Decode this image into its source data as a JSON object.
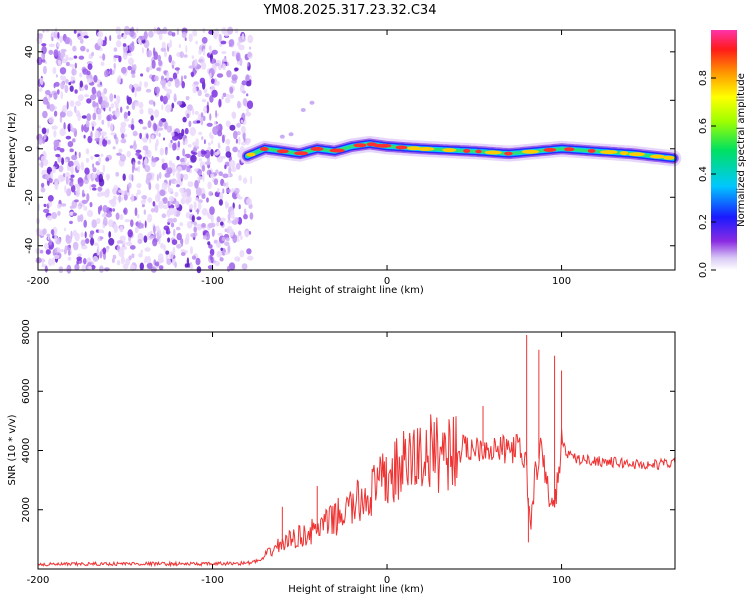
{
  "title": "YM08.2025.317.23.32.C34",
  "chart_data": [
    {
      "type": "heatmap",
      "title": "YM08.2025.317.23.32.C34",
      "xlabel": "Height of straight line (km)",
      "ylabel": "Frequency (Hz)",
      "xlim": [
        -200,
        165
      ],
      "ylim": [
        -50,
        49
      ],
      "xticks": [
        -200,
        -100,
        0,
        100
      ],
      "yticks": [
        -40,
        -20,
        0,
        20,
        40
      ],
      "noise_region_x": [
        -200,
        -80
      ],
      "signal_track": [
        {
          "x": -80,
          "y": -3
        },
        {
          "x": -70,
          "y": 0
        },
        {
          "x": -60,
          "y": -1
        },
        {
          "x": -50,
          "y": -2
        },
        {
          "x": -40,
          "y": 0
        },
        {
          "x": -30,
          "y": -1
        },
        {
          "x": -20,
          "y": 1
        },
        {
          "x": -10,
          "y": 2
        },
        {
          "x": 0,
          "y": 1
        },
        {
          "x": 20,
          "y": 0
        },
        {
          "x": 50,
          "y": -1
        },
        {
          "x": 70,
          "y": -2
        },
        {
          "x": 100,
          "y": 0
        },
        {
          "x": 140,
          "y": -2
        },
        {
          "x": 165,
          "y": -4
        }
      ],
      "colorbar": {
        "label": "Normalized spectral amplitude",
        "range": [
          0,
          1
        ],
        "ticks": [
          "0.0",
          "0.2",
          "0.4",
          "0.6",
          "0.8"
        ]
      }
    },
    {
      "type": "line",
      "xlabel": "Height of straight line (km)",
      "ylabel": "SNR (10 * v/v)",
      "xlim": [
        -200,
        165
      ],
      "ylim": [
        0,
        8000
      ],
      "xticks": [
        -200,
        -100,
        0,
        100
      ],
      "yticks": [
        2000,
        4000,
        6000,
        8000
      ],
      "color": "#ee3333",
      "series": [
        {
          "name": "SNR",
          "x": [
            -200,
            -150,
            -100,
            -80,
            -72,
            -65,
            -55,
            -45,
            -35,
            -25,
            -15,
            -5,
            5,
            15,
            25,
            35,
            45,
            55,
            65,
            75,
            80,
            82,
            85,
            88,
            92,
            95,
            98,
            100,
            105,
            110,
            120,
            130,
            140,
            150,
            165
          ],
          "y": [
            150,
            180,
            170,
            200,
            300,
            700,
            1000,
            1200,
            1500,
            1900,
            2300,
            2800,
            3300,
            3700,
            3900,
            4000,
            4050,
            4150,
            4000,
            4100,
            3500,
            1300,
            3200,
            4000,
            2800,
            1900,
            3000,
            4200,
            3800,
            3700,
            3650,
            3600,
            3550,
            3500,
            3600
          ]
        }
      ],
      "spikes": [
        {
          "x": -60,
          "y": 2100
        },
        {
          "x": -40,
          "y": 2800
        },
        {
          "x": 55,
          "y": 5500
        },
        {
          "x": 80,
          "y": 7900
        },
        {
          "x": 81,
          "y": 900
        },
        {
          "x": 87,
          "y": 7400
        },
        {
          "x": 96,
          "y": 7200
        },
        {
          "x": 100,
          "y": 6700
        }
      ]
    }
  ]
}
